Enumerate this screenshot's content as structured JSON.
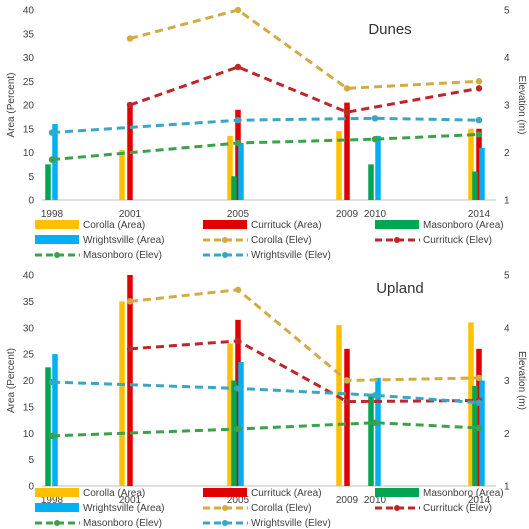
{
  "colors": {
    "Corolla": "#FFC000",
    "Currituck": "#E00000",
    "Masonboro": "#00A651",
    "Wrightsville": "#00B0F0",
    "Corolla_elev": "#D4AA44",
    "Currituck_elev": "#C0252B",
    "Masonboro_elev": "#3BA14A",
    "Wrightsville_elev": "#3AA6C6",
    "axis": "#bfbfbf",
    "text": "#404040"
  },
  "chart_data": [
    {
      "type": "bar+line",
      "title": "Dunes",
      "ylabel_left": "Area (Percent)",
      "ylabel_right": "Elevation (m)",
      "x_ticks": [
        "1998",
        "2001",
        "2005",
        "2009",
        "2010",
        "2014"
      ],
      "xlim": [
        1998,
        2014
      ],
      "ylim_left": [
        0,
        40
      ],
      "y_ticks_left": [
        "0",
        "5",
        "10",
        "15",
        "20",
        "25",
        "30",
        "35",
        "40"
      ],
      "ylim_right": [
        1,
        5
      ],
      "y_ticks_right": [
        "1",
        "2",
        "3",
        "4",
        "5"
      ],
      "bar_series": [
        {
          "name": "Corolla (Area)",
          "site": "Corolla",
          "points": [
            [
              2001,
              10.5
            ],
            [
              2005,
              13.5
            ],
            [
              2009,
              14.5
            ],
            [
              2014,
              15.0
            ]
          ]
        },
        {
          "name": "Currituck (Area)",
          "site": "Currituck",
          "points": [
            [
              2001,
              20.5
            ],
            [
              2005,
              19.0
            ],
            [
              2009,
              20.5
            ],
            [
              2014,
              15.0
            ]
          ]
        },
        {
          "name": "Masonboro (Area)",
          "site": "Masonboro",
          "points": [
            [
              1998,
              7.5
            ],
            [
              2005,
              5.0
            ],
            [
              2010,
              7.5
            ],
            [
              2014,
              6.0
            ]
          ]
        },
        {
          "name": "Wrightsville (Area)",
          "site": "Wrightsville",
          "points": [
            [
              1998,
              16.0
            ],
            [
              2005,
              12.0
            ],
            [
              2010,
              13.5
            ],
            [
              2014,
              11.0
            ]
          ]
        }
      ],
      "line_series": [
        {
          "name": "Corolla (Elev)",
          "site": "Corolla",
          "points": [
            [
              2001,
              4.4
            ],
            [
              2005,
              5.0
            ],
            [
              2009,
              3.35
            ],
            [
              2014,
              3.5
            ]
          ]
        },
        {
          "name": "Currituck (Elev)",
          "site": "Currituck",
          "points": [
            [
              2001,
              3.0
            ],
            [
              2005,
              3.8
            ],
            [
              2009,
              2.85
            ],
            [
              2014,
              3.35
            ]
          ]
        },
        {
          "name": "Masonboro (Elev)",
          "site": "Masonboro",
          "points": [
            [
              1998,
              1.85
            ],
            [
              2005,
              2.2
            ],
            [
              2010,
              2.28
            ],
            [
              2014,
              2.38
            ]
          ]
        },
        {
          "name": "Wrightsville (Elev)",
          "site": "Wrightsville",
          "points": [
            [
              1998,
              2.42
            ],
            [
              2005,
              2.68
            ],
            [
              2010,
              2.72
            ],
            [
              2014,
              2.68
            ]
          ]
        }
      ]
    },
    {
      "type": "bar+line",
      "title": "Upland",
      "ylabel_left": "Area (Percent)",
      "ylabel_right": "Elevation (m)",
      "x_ticks": [
        "1998",
        "2001",
        "2005",
        "2009",
        "2010",
        "2014"
      ],
      "xlim": [
        1998,
        2014
      ],
      "ylim_left": [
        0,
        40
      ],
      "y_ticks_left": [
        "0",
        "5",
        "10",
        "15",
        "20",
        "25",
        "30",
        "35",
        "40"
      ],
      "ylim_right": [
        1,
        5
      ],
      "y_ticks_right": [
        "1",
        "2",
        "3",
        "4",
        "5"
      ],
      "bar_series": [
        {
          "name": "Corolla (Area)",
          "site": "Corolla",
          "points": [
            [
              2001,
              35.0
            ],
            [
              2005,
              27.0
            ],
            [
              2009,
              30.5
            ],
            [
              2014,
              31.0
            ]
          ]
        },
        {
          "name": "Currituck (Area)",
          "site": "Currituck",
          "points": [
            [
              2001,
              40.0
            ],
            [
              2005,
              31.5
            ],
            [
              2009,
              26.0
            ],
            [
              2014,
              26.0
            ]
          ]
        },
        {
          "name": "Masonboro (Area)",
          "site": "Masonboro",
          "points": [
            [
              1998,
              22.5
            ],
            [
              2005,
              20.0
            ],
            [
              2010,
              17.5
            ],
            [
              2014,
              19.0
            ]
          ]
        },
        {
          "name": "Wrightsville (Area)",
          "site": "Wrightsville",
          "points": [
            [
              1998,
              25.0
            ],
            [
              2005,
              23.5
            ],
            [
              2010,
              20.5
            ],
            [
              2014,
              20.0
            ]
          ]
        }
      ],
      "line_series": [
        {
          "name": "Corolla (Elev)",
          "site": "Corolla",
          "points": [
            [
              2001,
              4.5
            ],
            [
              2005,
              4.72
            ],
            [
              2009,
              3.0
            ],
            [
              2014,
              3.05
            ]
          ]
        },
        {
          "name": "Currituck (Elev)",
          "site": "Currituck",
          "points": [
            [
              2001,
              3.6
            ],
            [
              2005,
              3.75
            ],
            [
              2009,
              2.6
            ],
            [
              2014,
              2.62
            ]
          ]
        },
        {
          "name": "Masonboro (Elev)",
          "site": "Masonboro",
          "points": [
            [
              1998,
              1.95
            ],
            [
              2005,
              2.08
            ],
            [
              2010,
              2.2
            ],
            [
              2014,
              2.1
            ]
          ]
        },
        {
          "name": "Wrightsville (Elev)",
          "site": "Wrightsville",
          "points": [
            [
              1998,
              2.97
            ],
            [
              2005,
              2.85
            ],
            [
              2010,
              2.72
            ],
            [
              2014,
              2.58
            ]
          ]
        }
      ]
    }
  ],
  "legend": [
    {
      "label": "Corolla (Area)",
      "kind": "bar",
      "site": "Corolla"
    },
    {
      "label": "Currituck (Area)",
      "kind": "bar",
      "site": "Currituck"
    },
    {
      "label": "Masonboro (Area)",
      "kind": "bar",
      "site": "Masonboro"
    },
    {
      "label": "Wrightsville (Area)",
      "kind": "bar",
      "site": "Wrightsville"
    },
    {
      "label": "Corolla (Elev)",
      "kind": "line",
      "site": "Corolla_elev"
    },
    {
      "label": "Currituck (Elev)",
      "kind": "line",
      "site": "Currituck_elev"
    },
    {
      "label": "Masonboro (Elev)",
      "kind": "line",
      "site": "Masonboro_elev"
    },
    {
      "label": "Wrightsville (Elev)",
      "kind": "line",
      "site": "Wrightsville_elev"
    }
  ]
}
